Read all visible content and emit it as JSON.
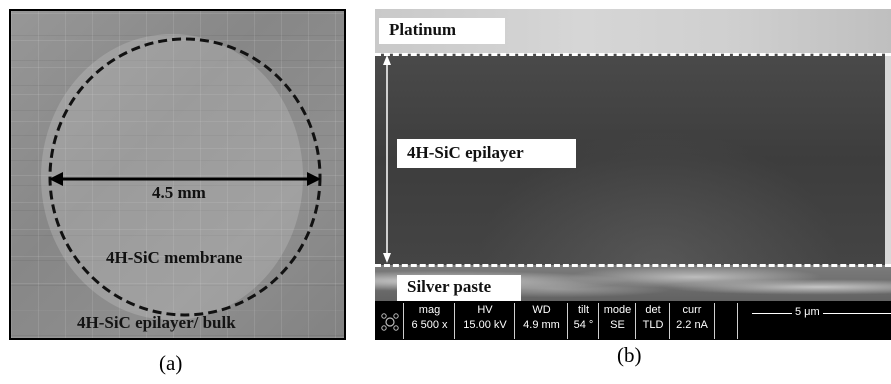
{
  "panel_a": {
    "dimension_label": "4.5 mm",
    "membrane_label": "4H-SiC membrane",
    "bulk_label": "4H-SiC epilayer/ bulk",
    "caption": "(a)"
  },
  "panel_b": {
    "platinum_label": "Platinum",
    "epilayer_label": "4H-SiC epilayer",
    "silver_label": "Silver paste",
    "caption": "(b)",
    "info_bar": {
      "columns": [
        {
          "head": "mag",
          "value": "6 500 x"
        },
        {
          "head": "HV",
          "value": "15.00 kV"
        },
        {
          "head": "WD",
          "value": "4.9 mm"
        },
        {
          "head": "tilt",
          "value": "54 °"
        },
        {
          "head": "mode",
          "value": "SE"
        },
        {
          "head": "det",
          "value": "TLD"
        },
        {
          "head": "curr",
          "value": "2.2 nA"
        }
      ],
      "scale_label": "5 μm"
    }
  },
  "icons": {
    "logo": "fei-logo-icon"
  }
}
